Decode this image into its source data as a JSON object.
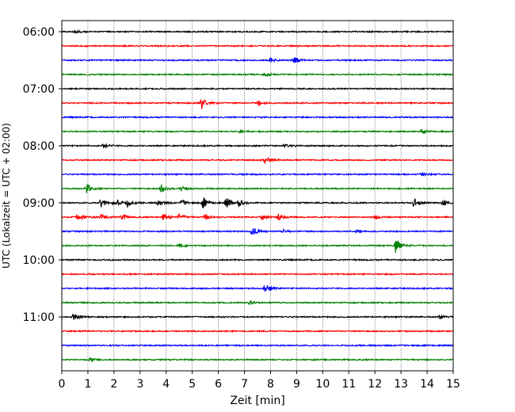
{
  "chart_data": {
    "type": "line",
    "title": "",
    "xlabel": "Zeit  [min]",
    "ylabel": "UTC (Lokalzeit = UTC + 02:00)",
    "xlim": [
      0,
      15
    ],
    "xticks": [
      "0",
      "1",
      "2",
      "3",
      "4",
      "5",
      "6",
      "7",
      "8",
      "9",
      "10",
      "11",
      "12",
      "13",
      "14",
      "15"
    ],
    "yticks": [
      "06:00",
      "07:00",
      "08:00",
      "09:00",
      "10:00",
      "11:00"
    ],
    "grid": "vertical dotted at each minute",
    "trace_colors": [
      "#000000",
      "#ff0000",
      "#0000ff",
      "#008000"
    ],
    "traces": [
      {
        "start_utc": "06:00",
        "events": [
          {
            "t": 0.5,
            "amp": 0.25
          }
        ]
      },
      {
        "start_utc": "06:15",
        "events": []
      },
      {
        "start_utc": "06:30",
        "events": [
          {
            "t": 8.0,
            "amp": 0.35
          },
          {
            "t": 8.9,
            "amp": 0.55
          }
        ]
      },
      {
        "start_utc": "06:45",
        "events": [
          {
            "t": 7.8,
            "amp": 0.2
          }
        ]
      },
      {
        "start_utc": "07:00",
        "events": []
      },
      {
        "start_utc": "07:15",
        "events": [
          {
            "t": 5.35,
            "amp": 0.75
          },
          {
            "t": 7.55,
            "amp": 0.35
          }
        ]
      },
      {
        "start_utc": "07:30",
        "events": []
      },
      {
        "start_utc": "07:45",
        "events": [
          {
            "t": 6.85,
            "amp": 0.3
          },
          {
            "t": 13.8,
            "amp": 0.3
          }
        ]
      },
      {
        "start_utc": "08:00",
        "events": [
          {
            "t": 1.6,
            "amp": 0.3
          },
          {
            "t": 8.5,
            "amp": 0.2
          }
        ]
      },
      {
        "start_utc": "08:15",
        "events": [
          {
            "t": 7.8,
            "amp": 0.5
          }
        ]
      },
      {
        "start_utc": "08:30",
        "events": [
          {
            "t": 13.8,
            "amp": 0.2
          }
        ]
      },
      {
        "start_utc": "08:45",
        "events": [
          {
            "t": 0.95,
            "amp": 0.7
          },
          {
            "t": 3.8,
            "amp": 0.65
          },
          {
            "t": 4.6,
            "amp": 0.3
          }
        ]
      },
      {
        "start_utc": "09:00",
        "events": [
          {
            "t": 1.5,
            "amp": 0.7
          },
          {
            "t": 2.0,
            "amp": 0.9
          },
          {
            "t": 2.5,
            "amp": 0.55
          },
          {
            "t": 3.7,
            "amp": 0.4
          },
          {
            "t": 4.6,
            "amp": 0.4
          },
          {
            "t": 5.4,
            "amp": 0.9
          },
          {
            "t": 6.3,
            "amp": 0.85
          },
          {
            "t": 6.8,
            "amp": 0.5
          },
          {
            "t": 13.5,
            "amp": 0.6
          },
          {
            "t": 14.6,
            "amp": 0.5
          }
        ]
      },
      {
        "start_utc": "09:15",
        "events": [
          {
            "t": 0.6,
            "amp": 0.6
          },
          {
            "t": 1.5,
            "amp": 0.4
          },
          {
            "t": 2.3,
            "amp": 0.45
          },
          {
            "t": 3.9,
            "amp": 0.55
          },
          {
            "t": 4.5,
            "amp": 0.45
          },
          {
            "t": 5.5,
            "amp": 0.45
          },
          {
            "t": 7.7,
            "amp": 0.4
          },
          {
            "t": 8.3,
            "amp": 0.45
          },
          {
            "t": 12.0,
            "amp": 0.3
          }
        ]
      },
      {
        "start_utc": "09:30",
        "events": [
          {
            "t": 7.3,
            "amp": 0.6
          },
          {
            "t": 8.5,
            "amp": 0.25
          },
          {
            "t": 11.3,
            "amp": 0.25
          }
        ]
      },
      {
        "start_utc": "09:45",
        "events": [
          {
            "t": 4.5,
            "amp": 0.3
          },
          {
            "t": 12.8,
            "amp": 1.1
          }
        ]
      },
      {
        "start_utc": "10:00",
        "events": []
      },
      {
        "start_utc": "10:15",
        "events": []
      },
      {
        "start_utc": "10:30",
        "events": [
          {
            "t": 7.8,
            "amp": 0.65
          }
        ]
      },
      {
        "start_utc": "10:45",
        "events": [
          {
            "t": 7.2,
            "amp": 0.2
          }
        ]
      },
      {
        "start_utc": "11:00",
        "events": [
          {
            "t": 0.45,
            "amp": 0.5
          },
          {
            "t": 14.5,
            "amp": 0.2
          }
        ]
      },
      {
        "start_utc": "11:15",
        "events": []
      },
      {
        "start_utc": "11:30",
        "events": []
      },
      {
        "start_utc": "11:45",
        "events": [
          {
            "t": 1.1,
            "amp": 0.25
          }
        ]
      }
    ]
  }
}
